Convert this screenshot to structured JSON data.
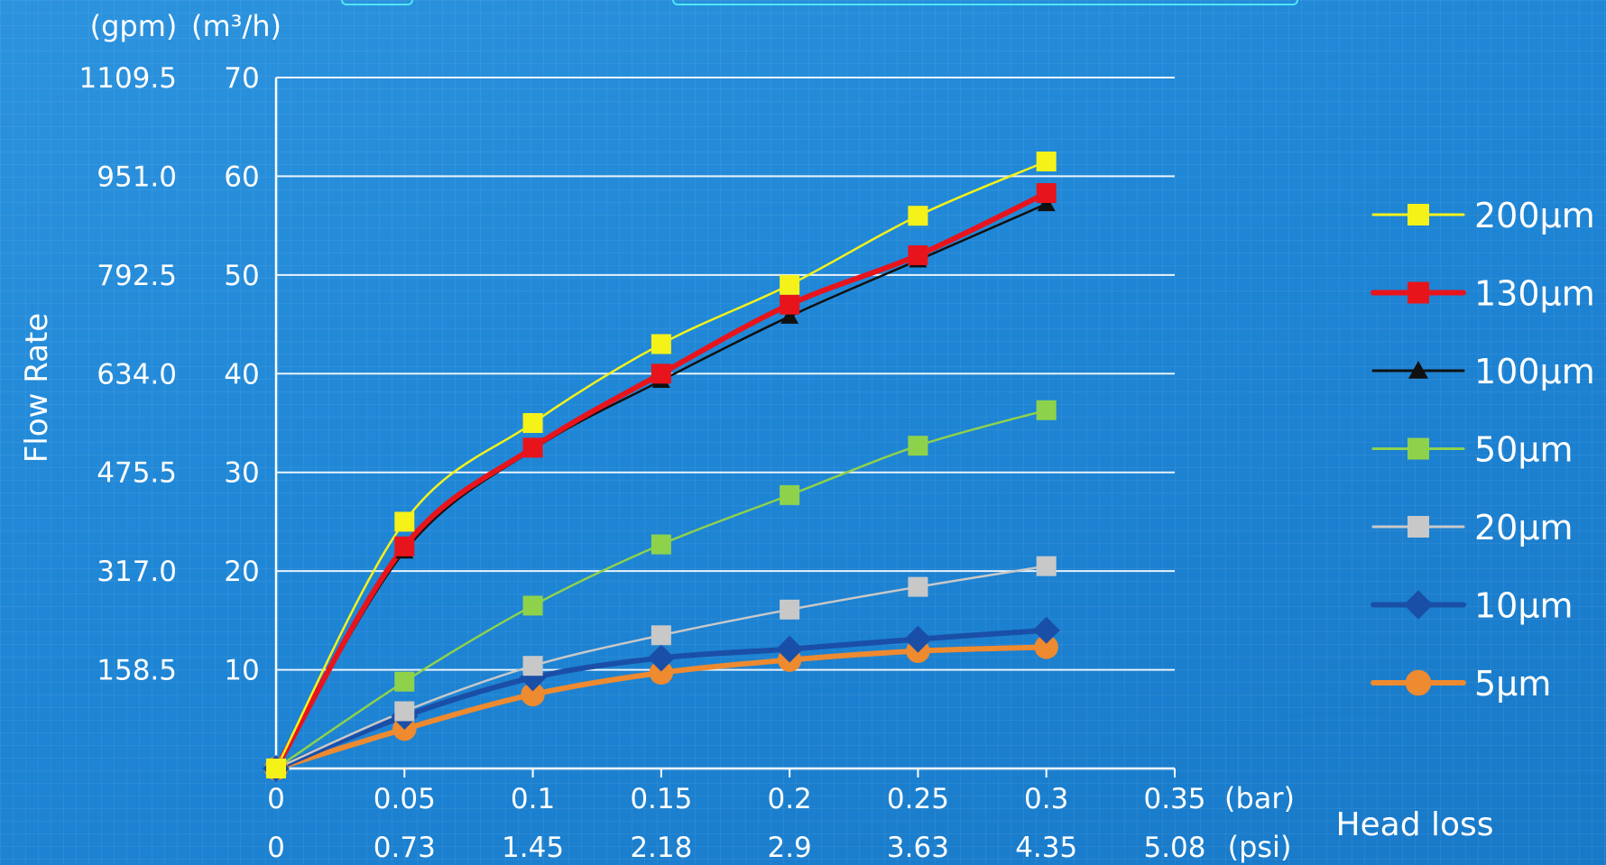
{
  "chart_data": {
    "type": "line",
    "ylabel": "Flow Rate",
    "xlabel": "Head loss",
    "y_unit_left": "(gpm)",
    "y_unit_right": "(m³/h)",
    "x_unit_top": "(bar)",
    "x_unit_bottom": "(psi)",
    "ylim": [
      0,
      70
    ],
    "xlim": [
      0,
      0.35
    ],
    "y_ticks_m3h": [
      "70",
      "60",
      "50",
      "40",
      "30",
      "20",
      "10"
    ],
    "y_ticks_gpm": [
      "1109.5",
      "951.0",
      "792.5",
      "634.0",
      "475.5",
      "317.0",
      "158.5"
    ],
    "x_ticks_bar": [
      "0",
      "0.05",
      "0.1",
      "0.15",
      "0.2",
      "0.25",
      "0.3",
      "0.35"
    ],
    "x_ticks_psi": [
      "0",
      "0.73",
      "1.45",
      "2.18",
      "2.9",
      "3.63",
      "4.35",
      "5.08"
    ],
    "x": [
      0,
      0.05,
      0.1,
      0.15,
      0.2,
      0.25,
      0.3
    ],
    "grid": true,
    "legend_position": "right",
    "series": [
      {
        "name": "200µm",
        "color": "#f5f21a",
        "marker": "square",
        "values": [
          0,
          25,
          35,
          43,
          49,
          56,
          61.5
        ]
      },
      {
        "name": "130µm",
        "color": "#e8141c",
        "marker": "square",
        "values": [
          0,
          22.5,
          32.5,
          40,
          47,
          52,
          58.3
        ]
      },
      {
        "name": "100µm",
        "color": "#111111",
        "marker": "triangle",
        "values": [
          0,
          22,
          32.3,
          39.3,
          45.8,
          51.5,
          57.2
        ]
      },
      {
        "name": "50µm",
        "color": "#8ed24c",
        "marker": "square",
        "values": [
          0,
          8.8,
          16.5,
          22.7,
          27.7,
          32.7,
          36.3
        ]
      },
      {
        "name": "20µm",
        "color": "#c8c8c8",
        "marker": "square",
        "values": [
          0,
          5.8,
          10.4,
          13.5,
          16.1,
          18.4,
          20.5
        ]
      },
      {
        "name": "10µm",
        "color": "#1a4fa8",
        "marker": "diamond",
        "values": [
          0,
          5.3,
          9.2,
          11.2,
          12.1,
          13.1,
          14
        ]
      },
      {
        "name": "5µm",
        "color": "#ee8a2f",
        "marker": "circle",
        "values": [
          0,
          4,
          7.5,
          9.7,
          11,
          11.9,
          12.3
        ]
      }
    ]
  }
}
